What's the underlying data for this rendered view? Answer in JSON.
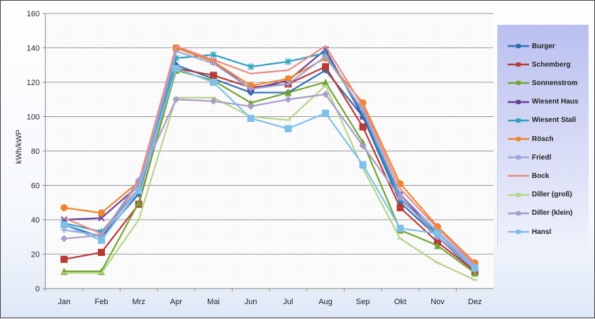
{
  "chart_data": {
    "type": "line",
    "title": "",
    "xlabel": "",
    "ylabel": "kWh/kWP",
    "ylim": [
      0,
      160
    ],
    "yticks": [
      "0",
      "20",
      "40",
      "60",
      "80",
      "100",
      "120",
      "140",
      "160"
    ],
    "grid": true,
    "legend_position": "right",
    "categories": [
      "Jan",
      "Feb",
      "Mrz",
      "Apr",
      "Mai",
      "Jun",
      "Jul",
      "Aug",
      "Sep",
      "Okt",
      "Nov",
      "Dez"
    ],
    "series": [
      {
        "name": "Burger",
        "color": "#2e6bb4",
        "marker": "diamond",
        "values": [
          37,
          30,
          55,
          130,
          122,
          114,
          114,
          127,
          100,
          50,
          30,
          10
        ]
      },
      {
        "name": "Schemberg",
        "color": "#b83a36",
        "marker": "square",
        "values": [
          17,
          21,
          49,
          128,
          124,
          117,
          119,
          129,
          94,
          47,
          27,
          10
        ]
      },
      {
        "name": "Sonnenstrom",
        "color": "#72a530",
        "marker": "triangle",
        "values": [
          10,
          10,
          50,
          127,
          121,
          108,
          114,
          120,
          85,
          34,
          25,
          9
        ]
      },
      {
        "name": "Wiesent Haus",
        "color": "#6a3f9a",
        "marker": "x",
        "values": [
          40,
          41,
          60,
          140,
          132,
          116,
          121,
          139,
          100,
          55,
          30,
          12
        ]
      },
      {
        "name": "Wiesent Stall",
        "color": "#2e9fbf",
        "marker": "star",
        "values": [
          38,
          33,
          58,
          134,
          136,
          129,
          132,
          137,
          102,
          52,
          32,
          12
        ]
      },
      {
        "name": "Rösch",
        "color": "#f0842a",
        "marker": "circle",
        "values": [
          47,
          44,
          62,
          140,
          132,
          118,
          122,
          134,
          108,
          61,
          36,
          15
        ]
      },
      {
        "name": "Friedl",
        "color": "#9aa6dc",
        "marker": "plus",
        "values": [
          34,
          31,
          58,
          138,
          131,
          116,
          119,
          135,
          104,
          55,
          33,
          13
        ]
      },
      {
        "name": "Bock",
        "color": "#e88a8a",
        "marker": "none",
        "values": [
          41,
          32,
          61,
          141,
          133,
          125,
          127,
          141,
          106,
          58,
          35,
          14
        ]
      },
      {
        "name": "Diller (groß)",
        "color": "#b4d68a",
        "marker": "dash",
        "values": [
          9,
          9,
          40,
          111,
          111,
          100,
          98,
          118,
          70,
          29,
          15,
          5
        ]
      },
      {
        "name": "Diller (klein)",
        "color": "#a89cc8",
        "marker": "diamond",
        "values": [
          29,
          31,
          63,
          110,
          109,
          106,
          110,
          113,
          83,
          53,
          30,
          11
        ]
      },
      {
        "name": "Hansl",
        "color": "#7ec0ea",
        "marker": "square",
        "values": [
          37,
          28,
          57,
          128,
          120,
          99,
          93,
          102,
          72,
          35,
          32,
          12
        ]
      }
    ]
  }
}
